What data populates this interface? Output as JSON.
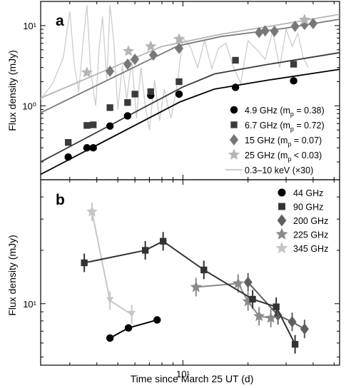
{
  "colors": {
    "c4_9": "#000000",
    "c6_7": "#3a3a3a",
    "c15": "#777777",
    "c25": "#b4b4b4",
    "xray": "#cccccc",
    "c44": "#000000",
    "c90": "#333333",
    "c200": "#5f5f5f",
    "c225": "#8a8a8a",
    "c345": "#c6c6c6"
  },
  "xlabel": "Time since March 25 UT  (d)",
  "chart_data": [
    {
      "type": "line",
      "panel_label": "a",
      "ylabel": "Flux density  (mJy)",
      "xscale": "log",
      "yscale": "log",
      "xlim": [
        2.2,
        53
      ],
      "ylim": [
        0.12,
        20
      ],
      "x_tick_labels": [
        {
          "value": 10,
          "label": ""
        }
      ],
      "y_tick_labels": [
        {
          "value": 1,
          "label": "10⁰"
        },
        {
          "value": 10,
          "label": "10¹"
        }
      ],
      "series": [
        {
          "name": "4.9 GHz (m",
          "sub": "p",
          "tail": " = 0.38)",
          "marker": "circle",
          "color_key": "c4_9",
          "points": [
            [
              2.95,
              0.23
            ],
            [
              3.6,
              0.3
            ],
            [
              3.85,
              0.3
            ],
            [
              4.6,
              0.56
            ],
            [
              5.55,
              0.75
            ],
            [
              7.1,
              1.35
            ],
            [
              9.6,
              1.4
            ],
            [
              17.5,
              1.7
            ],
            [
              32.5,
              2.05
            ]
          ],
          "fit": [
            [
              2.2,
              0.14
            ],
            [
              9.7,
              1.12
            ],
            [
              14.0,
              1.62
            ],
            [
              25.0,
              2.1
            ],
            [
              53.0,
              2.85
            ]
          ]
        },
        {
          "name": "6.7 GHz (m",
          "sub": "p",
          "tail": " = 0.72)",
          "marker": "square",
          "color_key": "c6_7",
          "points": [
            [
              2.95,
              0.35
            ],
            [
              3.6,
              0.57
            ],
            [
              3.85,
              0.58
            ],
            [
              4.6,
              0.95
            ],
            [
              5.55,
              1.1
            ],
            [
              6.0,
              1.4
            ],
            [
              7.1,
              1.5
            ],
            [
              9.6,
              2.0
            ],
            [
              17.5,
              3.7
            ],
            [
              32.5,
              3.3
            ]
          ],
          "fit": [
            [
              2.2,
              0.2
            ],
            [
              10.0,
              1.72
            ],
            [
              14.0,
              2.5
            ],
            [
              25.0,
              3.3
            ],
            [
              53.0,
              4.6
            ]
          ]
        },
        {
          "name": "15 GHz (m",
          "sub": "p",
          "tail": " = 0.07)",
          "marker": "diamond",
          "color_key": "c15",
          "points": [
            [
              4.6,
              2.7
            ],
            [
              5.55,
              3.3
            ],
            [
              6.0,
              3.8
            ],
            [
              7.3,
              4.3
            ],
            [
              9.6,
              5.2
            ],
            [
              22.5,
              8.2
            ],
            [
              24.0,
              8.6
            ],
            [
              26.5,
              8.5
            ],
            [
              33.0,
              9.8
            ],
            [
              36.5,
              10.3
            ],
            [
              40.0,
              10.6
            ]
          ],
          "fit": [
            [
              2.2,
              0.82
            ],
            [
              9.5,
              5.6
            ],
            [
              15.0,
              7.3
            ],
            [
              30.0,
              9.3
            ],
            [
              53.0,
              12.0
            ]
          ]
        },
        {
          "name": "25 GHz (m",
          "sub": "p",
          "tail": " < 0.03)",
          "marker": "star",
          "color_key": "c25",
          "points": [
            [
              3.6,
              2.6
            ],
            [
              5.6,
              4.8
            ],
            [
              7.1,
              5.5
            ],
            [
              9.6,
              6.8
            ],
            [
              36.5,
              11.8
            ]
          ],
          "fit": [
            [
              2.2,
              1.25
            ],
            [
              8.0,
              5.5
            ],
            [
              15.0,
              7.8
            ],
            [
              30.0,
              10.6
            ],
            [
              53.0,
              13.8
            ]
          ]
        },
        {
          "name": "0.3–10 keV (×30)",
          "marker": "line",
          "color_key": "xray",
          "points": [
            [
              2.2,
              1.2
            ],
            [
              2.5,
              1.9
            ],
            [
              2.8,
              4.0
            ],
            [
              3.0,
              15.0
            ],
            [
              3.15,
              3.2
            ],
            [
              3.3,
              1.5
            ],
            [
              3.45,
              6.0
            ],
            [
              3.6,
              18.0
            ],
            [
              3.75,
              2.6
            ],
            [
              3.95,
              1.0
            ],
            [
              4.1,
              5.2
            ],
            [
              4.25,
              13.0
            ],
            [
              4.45,
              2.1
            ],
            [
              4.6,
              18.0
            ],
            [
              4.8,
              6.0
            ],
            [
              5.0,
              0.9
            ],
            [
              5.25,
              3.2
            ],
            [
              5.5,
              1.2
            ],
            [
              5.8,
              3.8
            ],
            [
              6.1,
              0.7
            ],
            [
              6.4,
              3.0
            ],
            [
              6.7,
              1.0
            ],
            [
              7.0,
              0.5
            ],
            [
              7.4,
              2.1
            ],
            [
              7.8,
              0.65
            ],
            [
              8.2,
              1.6
            ],
            [
              8.8,
              0.7
            ],
            [
              9.4,
              1.8
            ],
            [
              10.0,
              7.0
            ],
            [
              10.8,
              5.5
            ],
            [
              11.7,
              3.0
            ],
            [
              12.6,
              6.5
            ],
            [
              13.6,
              2.9
            ],
            [
              14.6,
              5.2
            ],
            [
              15.8,
              6.0
            ],
            [
              17.0,
              3.2
            ],
            [
              18.5,
              1.9
            ],
            [
              20.0,
              6.5
            ],
            [
              22.0,
              5.0
            ],
            [
              24.0,
              3.8
            ],
            [
              26.0,
              8.5
            ],
            [
              28.0,
              3.0
            ],
            [
              30.0,
              9.0
            ],
            [
              32.0,
              5.5
            ],
            [
              34.0,
              8.0
            ],
            [
              36.0,
              4.0
            ],
            [
              38.0,
              3.0
            ]
          ]
        }
      ]
    },
    {
      "type": "line",
      "panel_label": "b",
      "ylabel": "Flux density  (mJy)",
      "xscale": "log",
      "yscale": "log",
      "xlim": [
        2.2,
        53
      ],
      "ylim": [
        4.5,
        50
      ],
      "x_tick_labels": [
        {
          "value": 10,
          "label": "10¹"
        }
      ],
      "y_tick_labels": [
        {
          "value": 10,
          "label": "10¹"
        }
      ],
      "series": [
        {
          "name": "44 GHz",
          "marker": "circle",
          "color_key": "c44",
          "points": [
            [
              4.6,
              6.4
            ],
            [
              5.6,
              7.3
            ],
            [
              7.6,
              8.1
            ]
          ]
        },
        {
          "name": "90 GHz",
          "marker": "square",
          "color_key": "c90",
          "points": [
            [
              3.5,
              17.0
            ],
            [
              6.7,
              20.0
            ],
            [
              8.1,
              22.5
            ],
            [
              12.5,
              15.5
            ],
            [
              21.0,
              10.6
            ],
            [
              27.0,
              9.6
            ],
            [
              33.0,
              5.9
            ]
          ]
        },
        {
          "name": "200 GHz",
          "marker": "diamond",
          "color_key": "c200",
          "points": [
            [
              20.0,
              13.2
            ],
            [
              27.5,
              8.6
            ],
            [
              32.0,
              7.9
            ],
            [
              36.5,
              7.2
            ]
          ]
        },
        {
          "name": "225 GHz",
          "marker": "star",
          "color_key": "c225",
          "points": [
            [
              11.5,
              12.4
            ],
            [
              18.0,
              13.0
            ],
            [
              20.0,
              10.3
            ],
            [
              22.5,
              8.5
            ],
            [
              25.5,
              8.3
            ]
          ]
        },
        {
          "name": "345 GHz",
          "marker": "star",
          "color_key": "c345",
          "points": [
            [
              3.8,
              33.0
            ],
            [
              4.6,
              10.4
            ],
            [
              5.8,
              8.7
            ]
          ]
        }
      ]
    }
  ]
}
